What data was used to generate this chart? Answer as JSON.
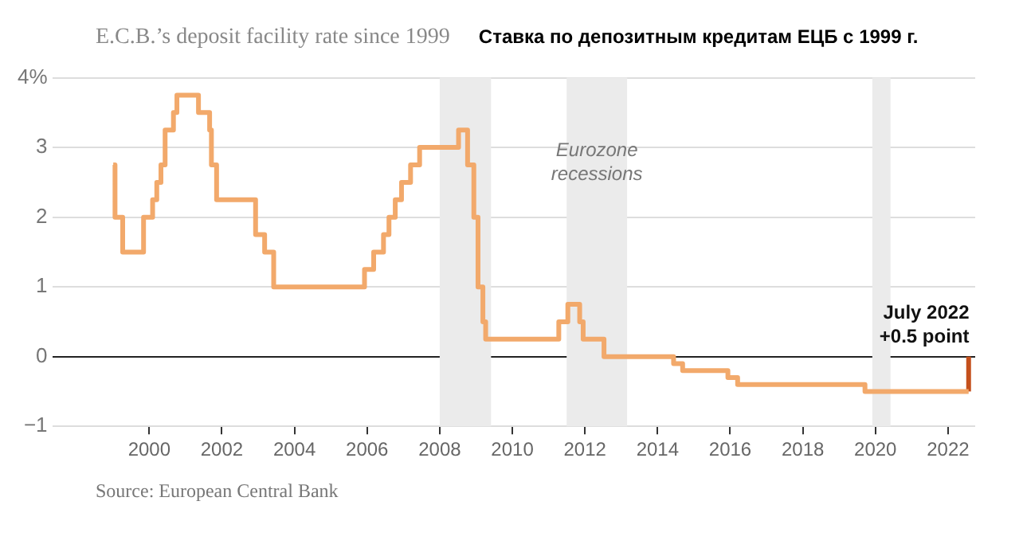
{
  "chart_data": {
    "type": "step",
    "title": "E.C.B.’s deposit facility rate since 1999",
    "subtitle": "Ставка по депозитным кредитам ЕЦБ с 1999 г.",
    "series": [
      {
        "color": "#f2a96b",
        "x": [
          "1999-01-04",
          "1999-01-22",
          "1999-04-09",
          "1999-11-05",
          "2000-02-04",
          "2000-03-17",
          "2000-04-28",
          "2000-06-09",
          "2000-09-01",
          "2000-10-06",
          "2001-05-11",
          "2001-08-31",
          "2001-09-18",
          "2001-11-09",
          "2002-12-06",
          "2003-03-07",
          "2003-06-06",
          "2005-12-06",
          "2006-03-08",
          "2006-06-15",
          "2006-08-09",
          "2006-10-11",
          "2006-12-13",
          "2007-03-14",
          "2007-06-13",
          "2008-07-09",
          "2008-10-08",
          "2008-11-12",
          "2008-12-10",
          "2009-01-21",
          "2009-03-11",
          "2009-04-08",
          "2011-04-13",
          "2011-07-13",
          "2011-11-09",
          "2011-12-14",
          "2012-07-11",
          "2014-06-11",
          "2014-09-10",
          "2015-12-09",
          "2016-03-16",
          "2019-09-18",
          "2022-07-27"
        ],
        "values": [
          2.75,
          2,
          1.5,
          2,
          2.25,
          2.5,
          2.75,
          3.25,
          3.5,
          3.75,
          3.5,
          3.25,
          2.75,
          2.25,
          1.75,
          1.5,
          1,
          1.25,
          1.5,
          1.75,
          2,
          2.25,
          2.5,
          2.75,
          3,
          3.25,
          2.75,
          2.75,
          2,
          1,
          0.5,
          0.25,
          0.5,
          0.75,
          0.5,
          0.25,
          0,
          -0.1,
          -0.2,
          -0.3,
          -0.4,
          -0.5,
          -0.5
        ]
      },
      {
        "color": "#c4501c",
        "x": [
          "2022-07-27",
          "2022-07-27"
        ],
        "values": [
          -0.5,
          0
        ]
      }
    ],
    "xlim": [
      "1997-05",
      "2022-10"
    ],
    "xticks": [
      "2000",
      "2002",
      "2004",
      "2006",
      "2008",
      "2010",
      "2012",
      "2014",
      "2016",
      "2018",
      "2020",
      "2022"
    ],
    "ylim": [
      -1,
      4
    ],
    "yticks": [
      {
        "value": 4,
        "label": "4%"
      },
      3,
      2,
      1,
      0,
      {
        "value": -1,
        "label": "−1"
      }
    ],
    "grid": "y",
    "legend": false,
    "line_style": "solid",
    "marker": "none",
    "bands": [
      {
        "axis": "x",
        "from": "2008-01",
        "to": "2009-06",
        "color": "#ebebeb"
      },
      {
        "axis": "x",
        "from": "2011-07",
        "to": "2013-03",
        "color": "#ebebeb",
        "label": "Eurozone\nrecessions"
      },
      {
        "axis": "x",
        "from": "2019-12",
        "to": "2020-06",
        "color": "#ebebeb"
      }
    ],
    "annotations": [
      {
        "text": "July 2022\n+0.5 point",
        "x": "2022-07",
        "y": 0
      },
      "Source: European Central Bank"
    ]
  }
}
